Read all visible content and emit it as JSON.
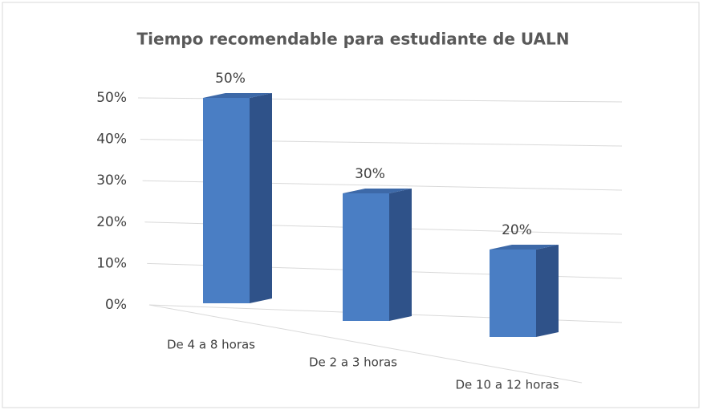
{
  "chart_data": {
    "type": "bar3d",
    "title": "Tiempo recomendable para estudiante de UALN",
    "categories": [
      "De 4 a 8 horas",
      "De 2 a 3 horas",
      "De 10 a 12 horas"
    ],
    "values": [
      50,
      30,
      20
    ],
    "value_labels": [
      "50%",
      "30%",
      "20%"
    ],
    "color": "#4a7ec4",
    "ylim": [
      0,
      50
    ],
    "yticks": [
      {
        "value": 0,
        "label": "0%"
      },
      {
        "value": 10,
        "label": "10%"
      },
      {
        "value": 20,
        "label": "20%"
      },
      {
        "value": 30,
        "label": "30%"
      },
      {
        "value": 40,
        "label": "40%"
      },
      {
        "value": 50,
        "label": "50%"
      }
    ],
    "grid": true
  }
}
